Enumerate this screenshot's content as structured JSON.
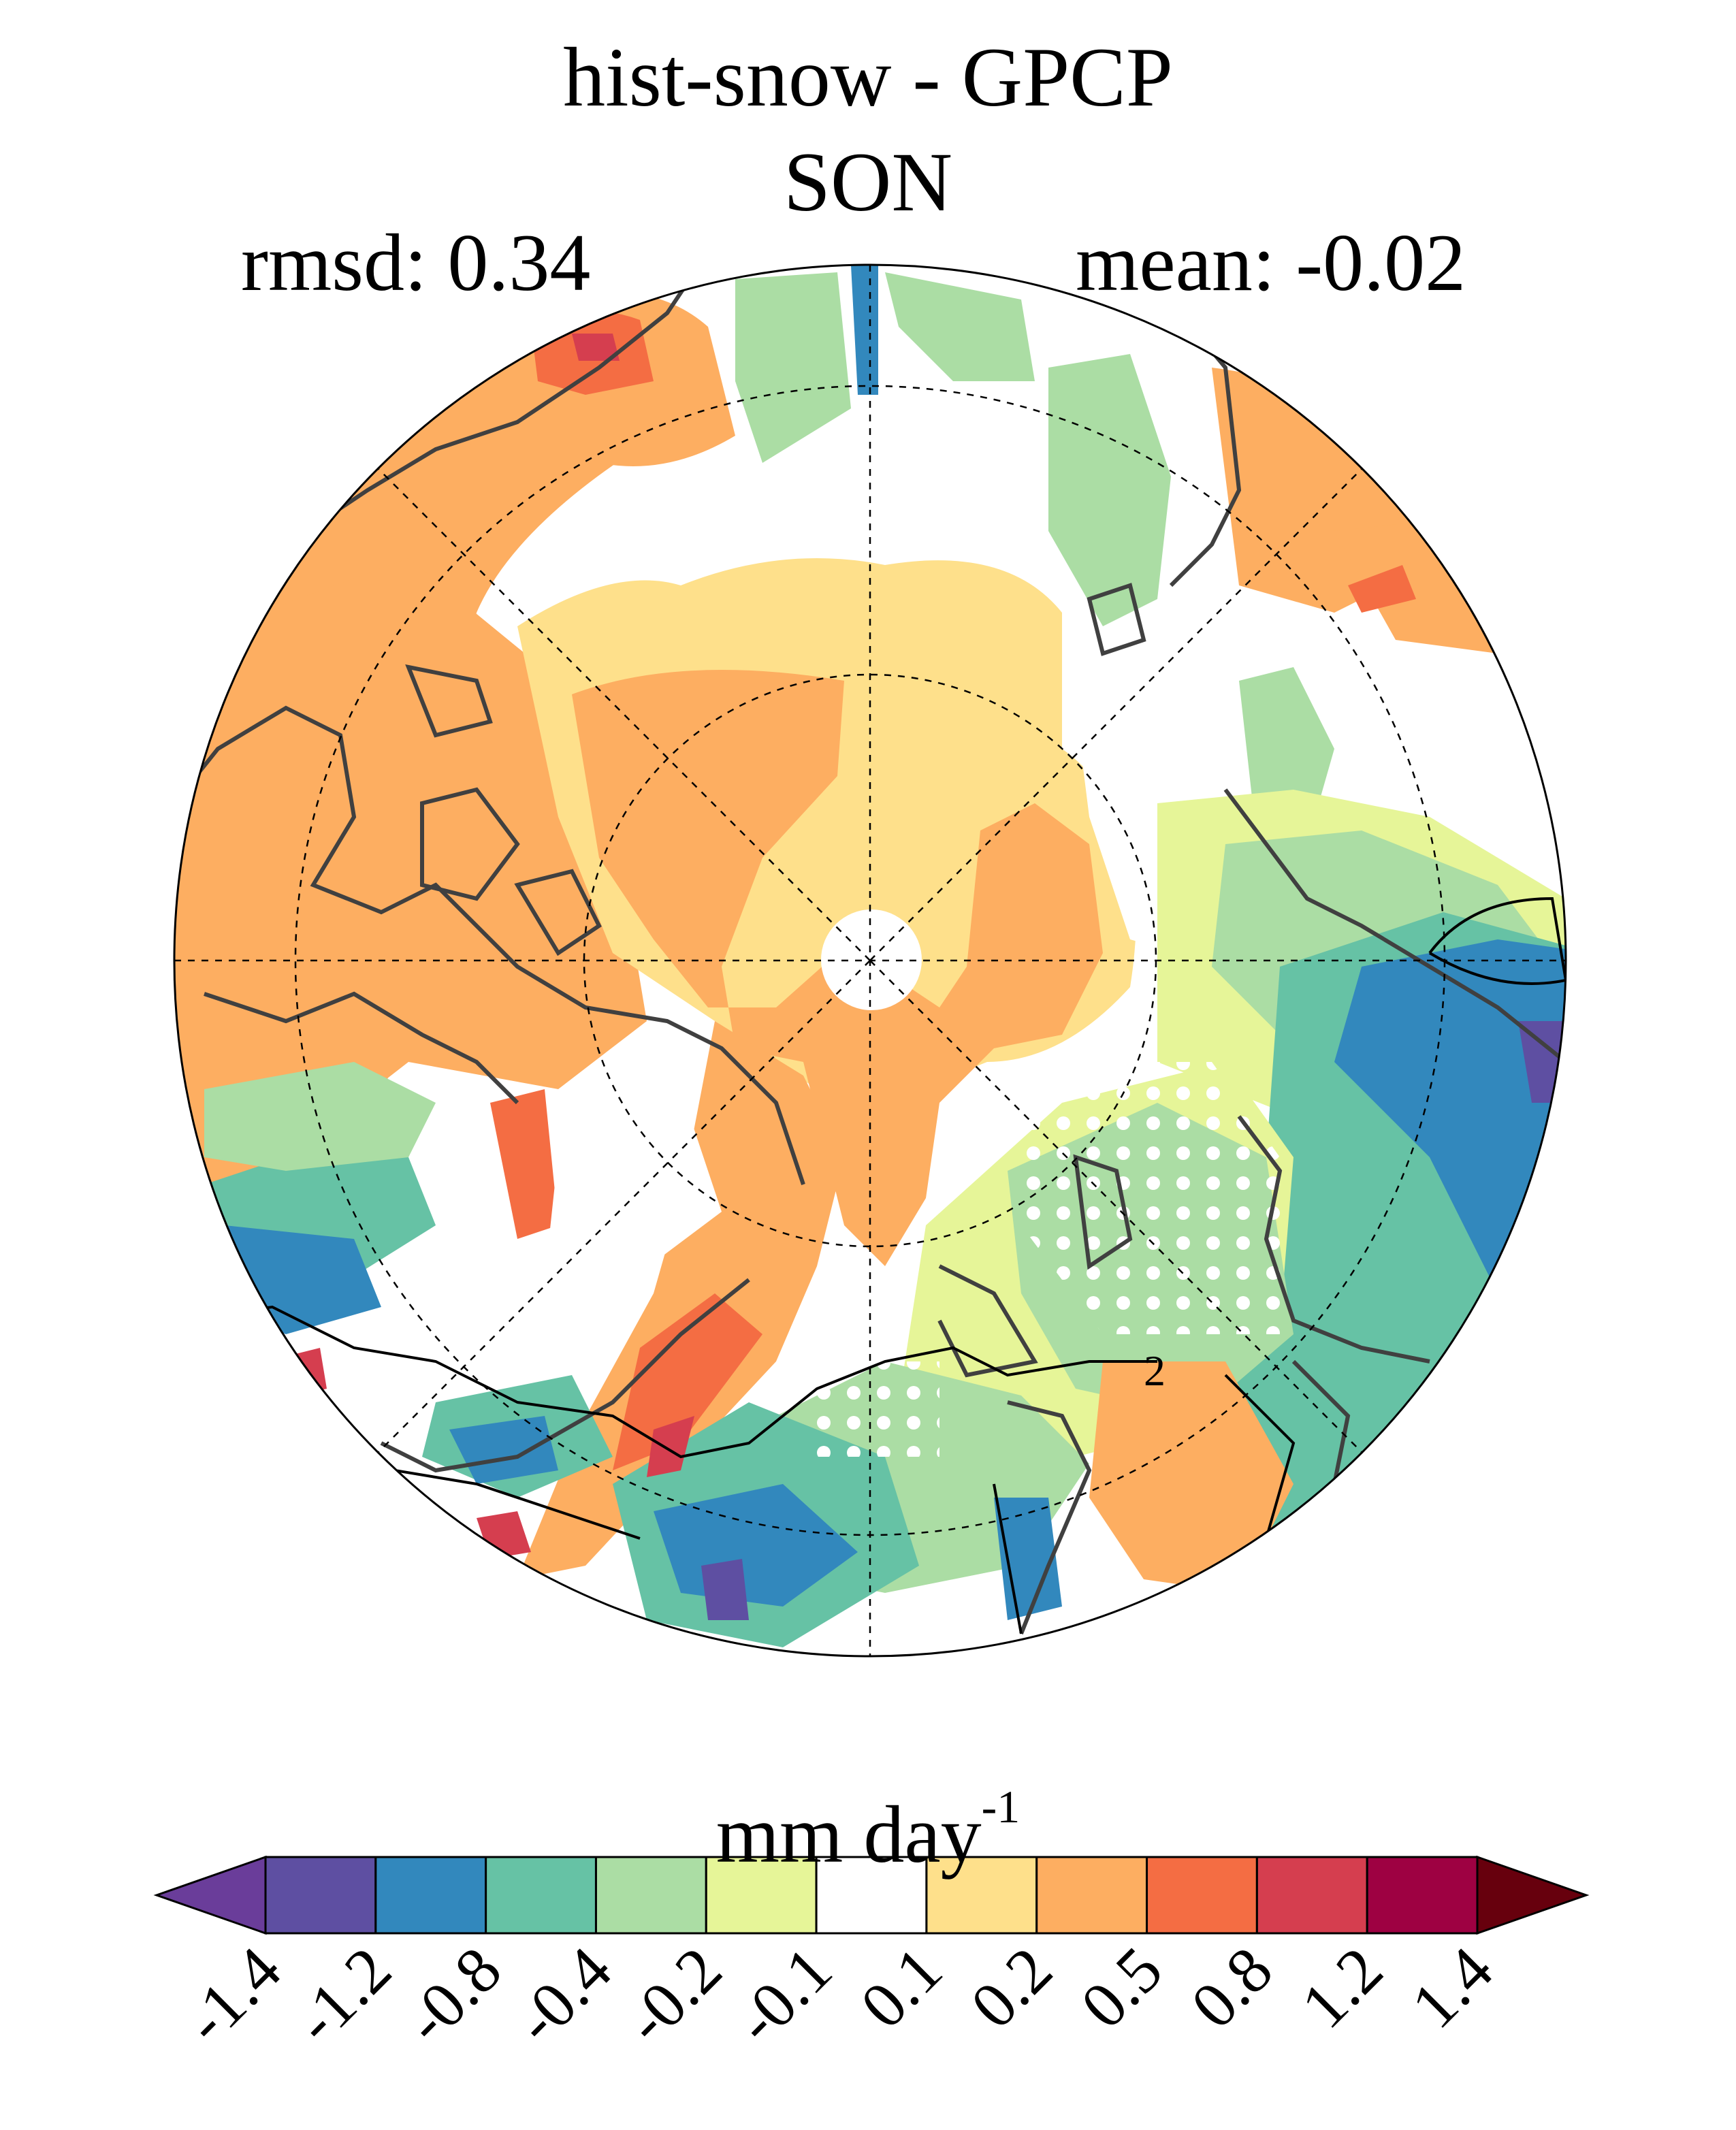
{
  "title": "hist-snow - GPCP",
  "subtitle": "SON",
  "stats": {
    "rmsd": "rmsd: 0.34",
    "mean": "mean: -0.02"
  },
  "contour_label": "2",
  "colorbar": {
    "units": "mm day",
    "units_exp": "-1",
    "ticks": [
      "-1.4",
      "-1.2",
      "-0.8",
      "-0.4",
      "-0.2",
      "-0.1",
      "0.1",
      "0.2",
      "0.5",
      "0.8",
      "1.2",
      "1.4"
    ],
    "colors": [
      "#5e4fa2",
      "#3288bd",
      "#66c2a5",
      "#abdda4",
      "#e6f598",
      "#ffffff",
      "#fee08b",
      "#fdae61",
      "#f46d43",
      "#d53e4f",
      "#9e0142"
    ],
    "under_color": "#6a3d9a",
    "over_color": "#67000d"
  },
  "colors": {
    "orange": "#fdae61",
    "light_orange": "#fee08b",
    "red_orange": "#f46d43",
    "red": "#d53e4f",
    "dark_red": "#9e0142",
    "yellow_green": "#e6f598",
    "light_green": "#abdda4",
    "teal": "#66c2a5",
    "blue": "#3288bd",
    "purple": "#5e4fa2"
  }
}
